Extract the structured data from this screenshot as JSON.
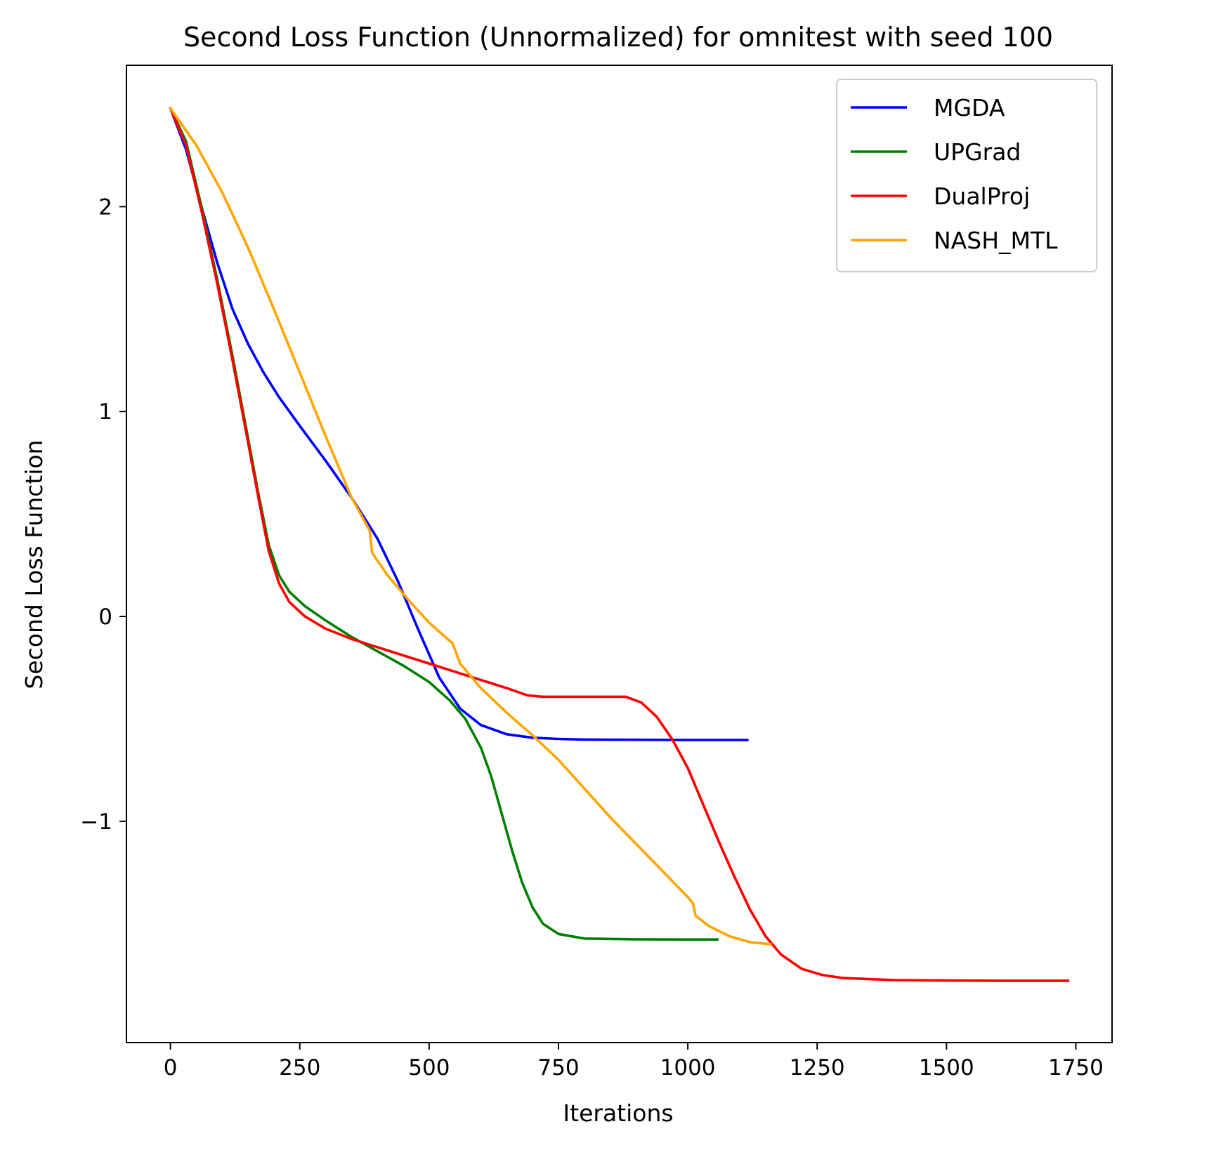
{
  "chart_data": {
    "type": "line",
    "title": "Second Loss Function (Unnormalized) for omnitest with seed 100",
    "xlabel": "Iterations",
    "ylabel": "Second Loss Function",
    "xlim": [
      -85,
      1820
    ],
    "ylim": [
      -2.08,
      2.69
    ],
    "xticks": [
      {
        "value": 0,
        "label": "0"
      },
      {
        "value": 250,
        "label": "250"
      },
      {
        "value": 500,
        "label": "500"
      },
      {
        "value": 750,
        "label": "750"
      },
      {
        "value": 1000,
        "label": "1000"
      },
      {
        "value": 1250,
        "label": "1250"
      },
      {
        "value": 1500,
        "label": "1500"
      },
      {
        "value": 1750,
        "label": "1750"
      }
    ],
    "yticks": [
      {
        "value": -1,
        "label": "−1"
      },
      {
        "value": 0,
        "label": "0"
      },
      {
        "value": 1,
        "label": "1"
      },
      {
        "value": 2,
        "label": "2"
      }
    ],
    "grid": false,
    "legend": "top-right",
    "series": [
      {
        "name": "MGDA",
        "color": "#0000ff",
        "points": [
          [
            0,
            2.48
          ],
          [
            30,
            2.28
          ],
          [
            60,
            2.0
          ],
          [
            90,
            1.73
          ],
          [
            120,
            1.5
          ],
          [
            150,
            1.33
          ],
          [
            180,
            1.19
          ],
          [
            210,
            1.07
          ],
          [
            250,
            0.93
          ],
          [
            300,
            0.76
          ],
          [
            350,
            0.58
          ],
          [
            400,
            0.38
          ],
          [
            440,
            0.17
          ],
          [
            480,
            -0.07
          ],
          [
            520,
            -0.3
          ],
          [
            560,
            -0.45
          ],
          [
            600,
            -0.53
          ],
          [
            650,
            -0.575
          ],
          [
            700,
            -0.592
          ],
          [
            750,
            -0.598
          ],
          [
            800,
            -0.601
          ],
          [
            900,
            -0.602
          ],
          [
            1000,
            -0.603
          ],
          [
            1115,
            -0.603
          ]
        ]
      },
      {
        "name": "UPGrad",
        "color": "#008000",
        "points": [
          [
            0,
            2.48
          ],
          [
            30,
            2.32
          ],
          [
            60,
            2.0
          ],
          [
            90,
            1.65
          ],
          [
            120,
            1.27
          ],
          [
            150,
            0.87
          ],
          [
            170,
            0.6
          ],
          [
            190,
            0.35
          ],
          [
            210,
            0.2
          ],
          [
            230,
            0.12
          ],
          [
            260,
            0.05
          ],
          [
            300,
            -0.02
          ],
          [
            350,
            -0.1
          ],
          [
            400,
            -0.17
          ],
          [
            450,
            -0.24
          ],
          [
            500,
            -0.32
          ],
          [
            540,
            -0.41
          ],
          [
            570,
            -0.5
          ],
          [
            600,
            -0.64
          ],
          [
            620,
            -0.78
          ],
          [
            640,
            -0.96
          ],
          [
            660,
            -1.14
          ],
          [
            680,
            -1.3
          ],
          [
            700,
            -1.42
          ],
          [
            720,
            -1.5
          ],
          [
            750,
            -1.55
          ],
          [
            800,
            -1.572
          ],
          [
            900,
            -1.576
          ],
          [
            1000,
            -1.577
          ],
          [
            1057,
            -1.577
          ]
        ]
      },
      {
        "name": "DualProj",
        "color": "#ff0000",
        "points": [
          [
            0,
            2.48
          ],
          [
            30,
            2.3
          ],
          [
            60,
            1.98
          ],
          [
            90,
            1.63
          ],
          [
            120,
            1.25
          ],
          [
            150,
            0.85
          ],
          [
            170,
            0.58
          ],
          [
            190,
            0.32
          ],
          [
            210,
            0.16
          ],
          [
            230,
            0.07
          ],
          [
            260,
            0.0
          ],
          [
            300,
            -0.06
          ],
          [
            350,
            -0.11
          ],
          [
            400,
            -0.15
          ],
          [
            450,
            -0.19
          ],
          [
            500,
            -0.23
          ],
          [
            550,
            -0.27
          ],
          [
            600,
            -0.31
          ],
          [
            650,
            -0.35
          ],
          [
            690,
            -0.385
          ],
          [
            720,
            -0.392
          ],
          [
            780,
            -0.392
          ],
          [
            850,
            -0.392
          ],
          [
            880,
            -0.392
          ],
          [
            910,
            -0.42
          ],
          [
            940,
            -0.49
          ],
          [
            970,
            -0.6
          ],
          [
            1000,
            -0.74
          ],
          [
            1030,
            -0.92
          ],
          [
            1060,
            -1.1
          ],
          [
            1090,
            -1.27
          ],
          [
            1120,
            -1.43
          ],
          [
            1150,
            -1.56
          ],
          [
            1180,
            -1.65
          ],
          [
            1220,
            -1.72
          ],
          [
            1260,
            -1.75
          ],
          [
            1300,
            -1.765
          ],
          [
            1400,
            -1.775
          ],
          [
            1500,
            -1.777
          ],
          [
            1600,
            -1.778
          ],
          [
            1735,
            -1.778
          ]
        ]
      },
      {
        "name": "NASH_MTL",
        "color": "#ffa500",
        "points": [
          [
            0,
            2.48
          ],
          [
            50,
            2.3
          ],
          [
            100,
            2.07
          ],
          [
            150,
            1.8
          ],
          [
            200,
            1.5
          ],
          [
            250,
            1.19
          ],
          [
            300,
            0.88
          ],
          [
            350,
            0.58
          ],
          [
            385,
            0.42
          ],
          [
            390,
            0.31
          ],
          [
            420,
            0.2
          ],
          [
            460,
            0.08
          ],
          [
            500,
            -0.03
          ],
          [
            540,
            -0.12
          ],
          [
            545,
            -0.13
          ],
          [
            560,
            -0.23
          ],
          [
            600,
            -0.35
          ],
          [
            650,
            -0.47
          ],
          [
            700,
            -0.58
          ],
          [
            750,
            -0.7
          ],
          [
            800,
            -0.84
          ],
          [
            850,
            -0.98
          ],
          [
            900,
            -1.11
          ],
          [
            950,
            -1.24
          ],
          [
            1000,
            -1.37
          ],
          [
            1010,
            -1.4
          ],
          [
            1015,
            -1.46
          ],
          [
            1040,
            -1.51
          ],
          [
            1080,
            -1.56
          ],
          [
            1120,
            -1.59
          ],
          [
            1160,
            -1.6
          ]
        ]
      }
    ]
  }
}
